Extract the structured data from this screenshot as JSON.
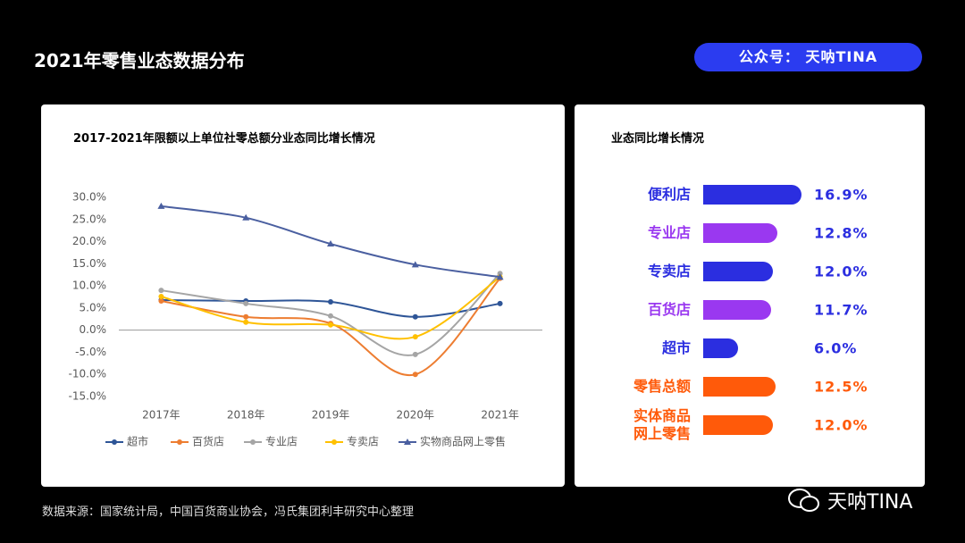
{
  "title": "2021年零售业态数据分布",
  "badge": "公众号： 天呐TINA",
  "source": "数据来源：国家统计局，中国百货商业协会，冯氏集团利丰研究中心整理",
  "watermark": "天呐TINA",
  "chart_data": [
    {
      "type": "line",
      "title": "2017-2021年限额以上单位社零总额分业态同比增长情况",
      "categories": [
        "2017年",
        "2018年",
        "2019年",
        "2020年",
        "2021年"
      ],
      "ylim": [
        -15,
        30
      ],
      "yticks": [
        {
          "value": 30,
          "label": "30.0%"
        },
        {
          "value": 25,
          "label": "25.0%"
        },
        {
          "value": 20,
          "label": "20.0%"
        },
        {
          "value": 15,
          "label": "15.0%"
        },
        {
          "value": 10,
          "label": "10.0%"
        },
        {
          "value": 5,
          "label": "5.0%"
        },
        {
          "value": 0,
          "label": "0.0%"
        },
        {
          "value": -5,
          "label": "-5.0%"
        },
        {
          "value": -10,
          "label": "-10.0%"
        },
        {
          "value": -15,
          "label": "-15.0%"
        }
      ],
      "grid": false,
      "legend": "bottom",
      "series": [
        {
          "name": "超市",
          "color": "#2e5597",
          "marker": "circle",
          "values": [
            6.8,
            6.6,
            6.4,
            3.0,
            6.0
          ]
        },
        {
          "name": "百货店",
          "color": "#ed7d31",
          "marker": "circle",
          "values": [
            6.6,
            3.0,
            1.5,
            -10.0,
            11.7
          ]
        },
        {
          "name": "专业店",
          "color": "#a5a5a5",
          "marker": "circle",
          "values": [
            9.0,
            6.0,
            3.2,
            -5.5,
            12.8
          ]
        },
        {
          "name": "专卖店",
          "color": "#ffc000",
          "marker": "circle",
          "values": [
            7.6,
            1.8,
            1.2,
            -1.5,
            12.0
          ]
        },
        {
          "name": "实物商品网上零售",
          "color": "#4a5fa0",
          "marker": "triangle",
          "values": [
            28.0,
            25.4,
            19.5,
            14.8,
            12.0
          ]
        }
      ]
    },
    {
      "type": "barh",
      "title": "业态同比增长情况",
      "categories": [
        "便利店",
        "专业店",
        "专卖店",
        "百货店",
        "超市",
        "零售总额",
        "实体商品\n网上零售"
      ],
      "values": [
        16.9,
        12.8,
        12.0,
        11.7,
        6.0,
        12.5,
        12.0
      ],
      "value_labels": [
        "16.9%",
        "12.8%",
        "12.0%",
        "11.7%",
        "6.0%",
        "12.5%",
        "12.0%"
      ],
      "colors": [
        "#2b2ee0",
        "#9a38f0",
        "#2b2ee0",
        "#9a38f0",
        "#2b2ee0",
        "#ff5a0a",
        "#ff5a0a"
      ]
    }
  ]
}
